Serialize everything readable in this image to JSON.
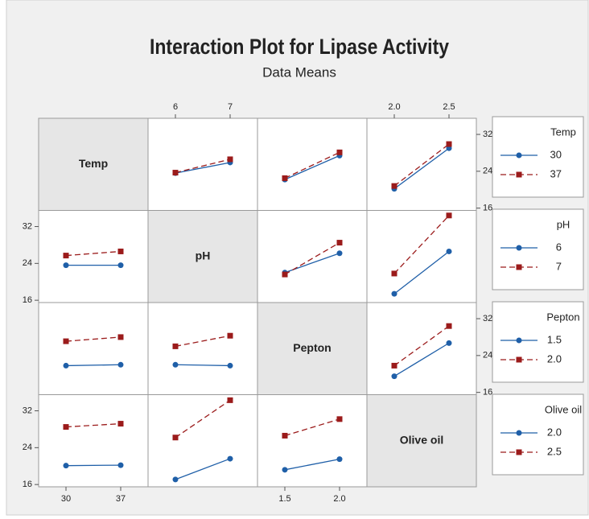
{
  "chart_data": {
    "type": "interaction_matrix",
    "title": "Interaction Plot for Lipase Activity",
    "subtitle": "Data Means",
    "ylim": [
      15.5,
      35.5
    ],
    "yticks": [
      16,
      24,
      32
    ],
    "colors": [
      "#1f5fa8",
      "#9b1b1b"
    ],
    "markers": [
      "circle",
      "square"
    ],
    "line_styles": [
      "solid",
      "dashed"
    ],
    "factors": [
      {
        "name": "Temp",
        "levels": [
          30,
          37
        ],
        "xlim": [
          26.5,
          40.5
        ],
        "means": [
          null,
          [
            [
              23.6,
              25.9
            ],
            [
              23.7,
              26.6
            ]
          ],
          [
            [
              22.2,
              27.4
            ],
            [
              22.5,
              28.1
            ]
          ],
          [
            [
              20.2,
              29.0
            ],
            [
              20.8,
              29.9
            ]
          ]
        ]
      },
      {
        "name": "pH",
        "levels": [
          6,
          7
        ],
        "xlim": [
          5.5,
          7.5
        ],
        "means": [
          [
            [
              23.6,
              23.6
            ],
            [
              25.7,
              26.6
            ]
          ],
          null,
          [
            [
              22.0,
              26.2
            ],
            [
              21.6,
              28.5
            ]
          ],
          [
            [
              17.4,
              26.6
            ],
            [
              21.8,
              34.4
            ]
          ]
        ]
      },
      {
        "name": "Pepton",
        "levels": [
          1.5,
          {
            "value": 2,
            "label": "2.0"
          }
        ],
        "xlim": [
          1.25,
          2.25
        ],
        "means": [
          [
            [
              21.8,
              22.0
            ],
            [
              27.1,
              28.0
            ]
          ],
          [
            [
              22.0,
              21.8
            ],
            [
              26.0,
              28.3
            ]
          ],
          null,
          [
            [
              19.5,
              26.7
            ],
            [
              21.8,
              30.4
            ]
          ]
        ]
      },
      {
        "name": "Olive oil",
        "levels": [
          {
            "value": 2,
            "label": "2.0"
          },
          2.5
        ],
        "xlim": [
          1.75,
          2.75
        ],
        "means": [
          [
            [
              20.1,
              20.2
            ],
            [
              28.5,
              29.2
            ]
          ],
          [
            [
              17.1,
              21.6
            ],
            [
              26.2,
              34.3
            ]
          ],
          [
            [
              19.2,
              21.5
            ],
            [
              26.6,
              30.2
            ]
          ],
          null
        ]
      }
    ]
  }
}
